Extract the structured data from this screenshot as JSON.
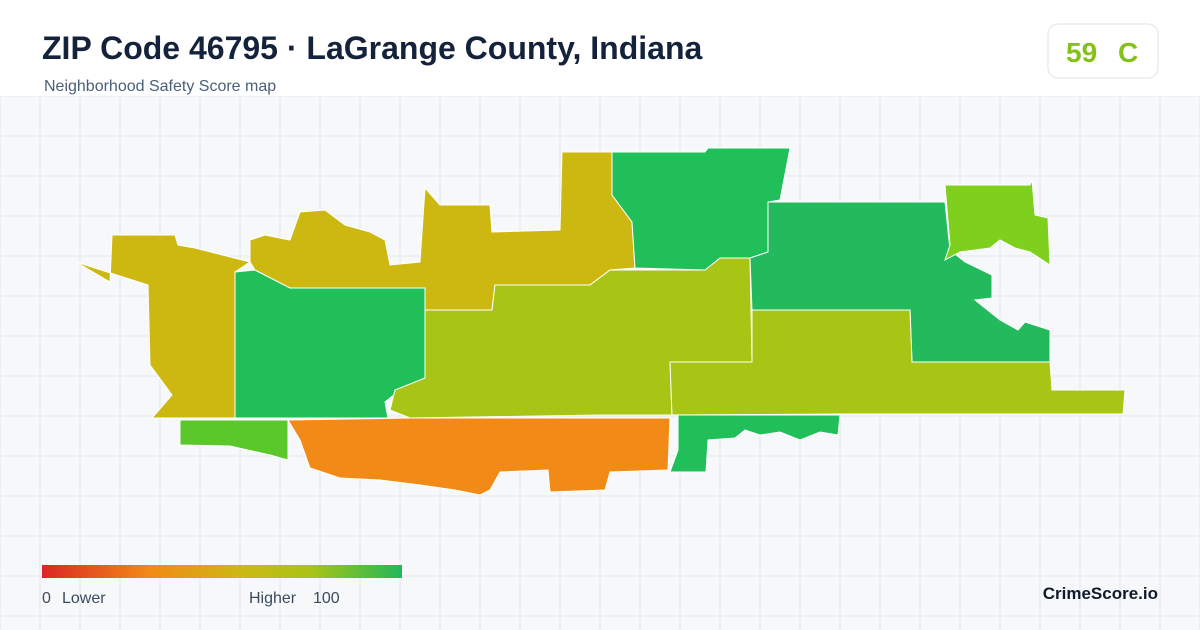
{
  "header": {
    "title": "ZIP Code 46795 · LaGrange County, Indiana",
    "subtitle": "Neighborhood Safety Score map"
  },
  "badge": {
    "score": "59",
    "grade": "C"
  },
  "legend": {
    "min": "0",
    "low_label": "Lower",
    "high_label": "Higher",
    "max": "100"
  },
  "footer": {
    "brand": "CrimeScore.io"
  }
}
